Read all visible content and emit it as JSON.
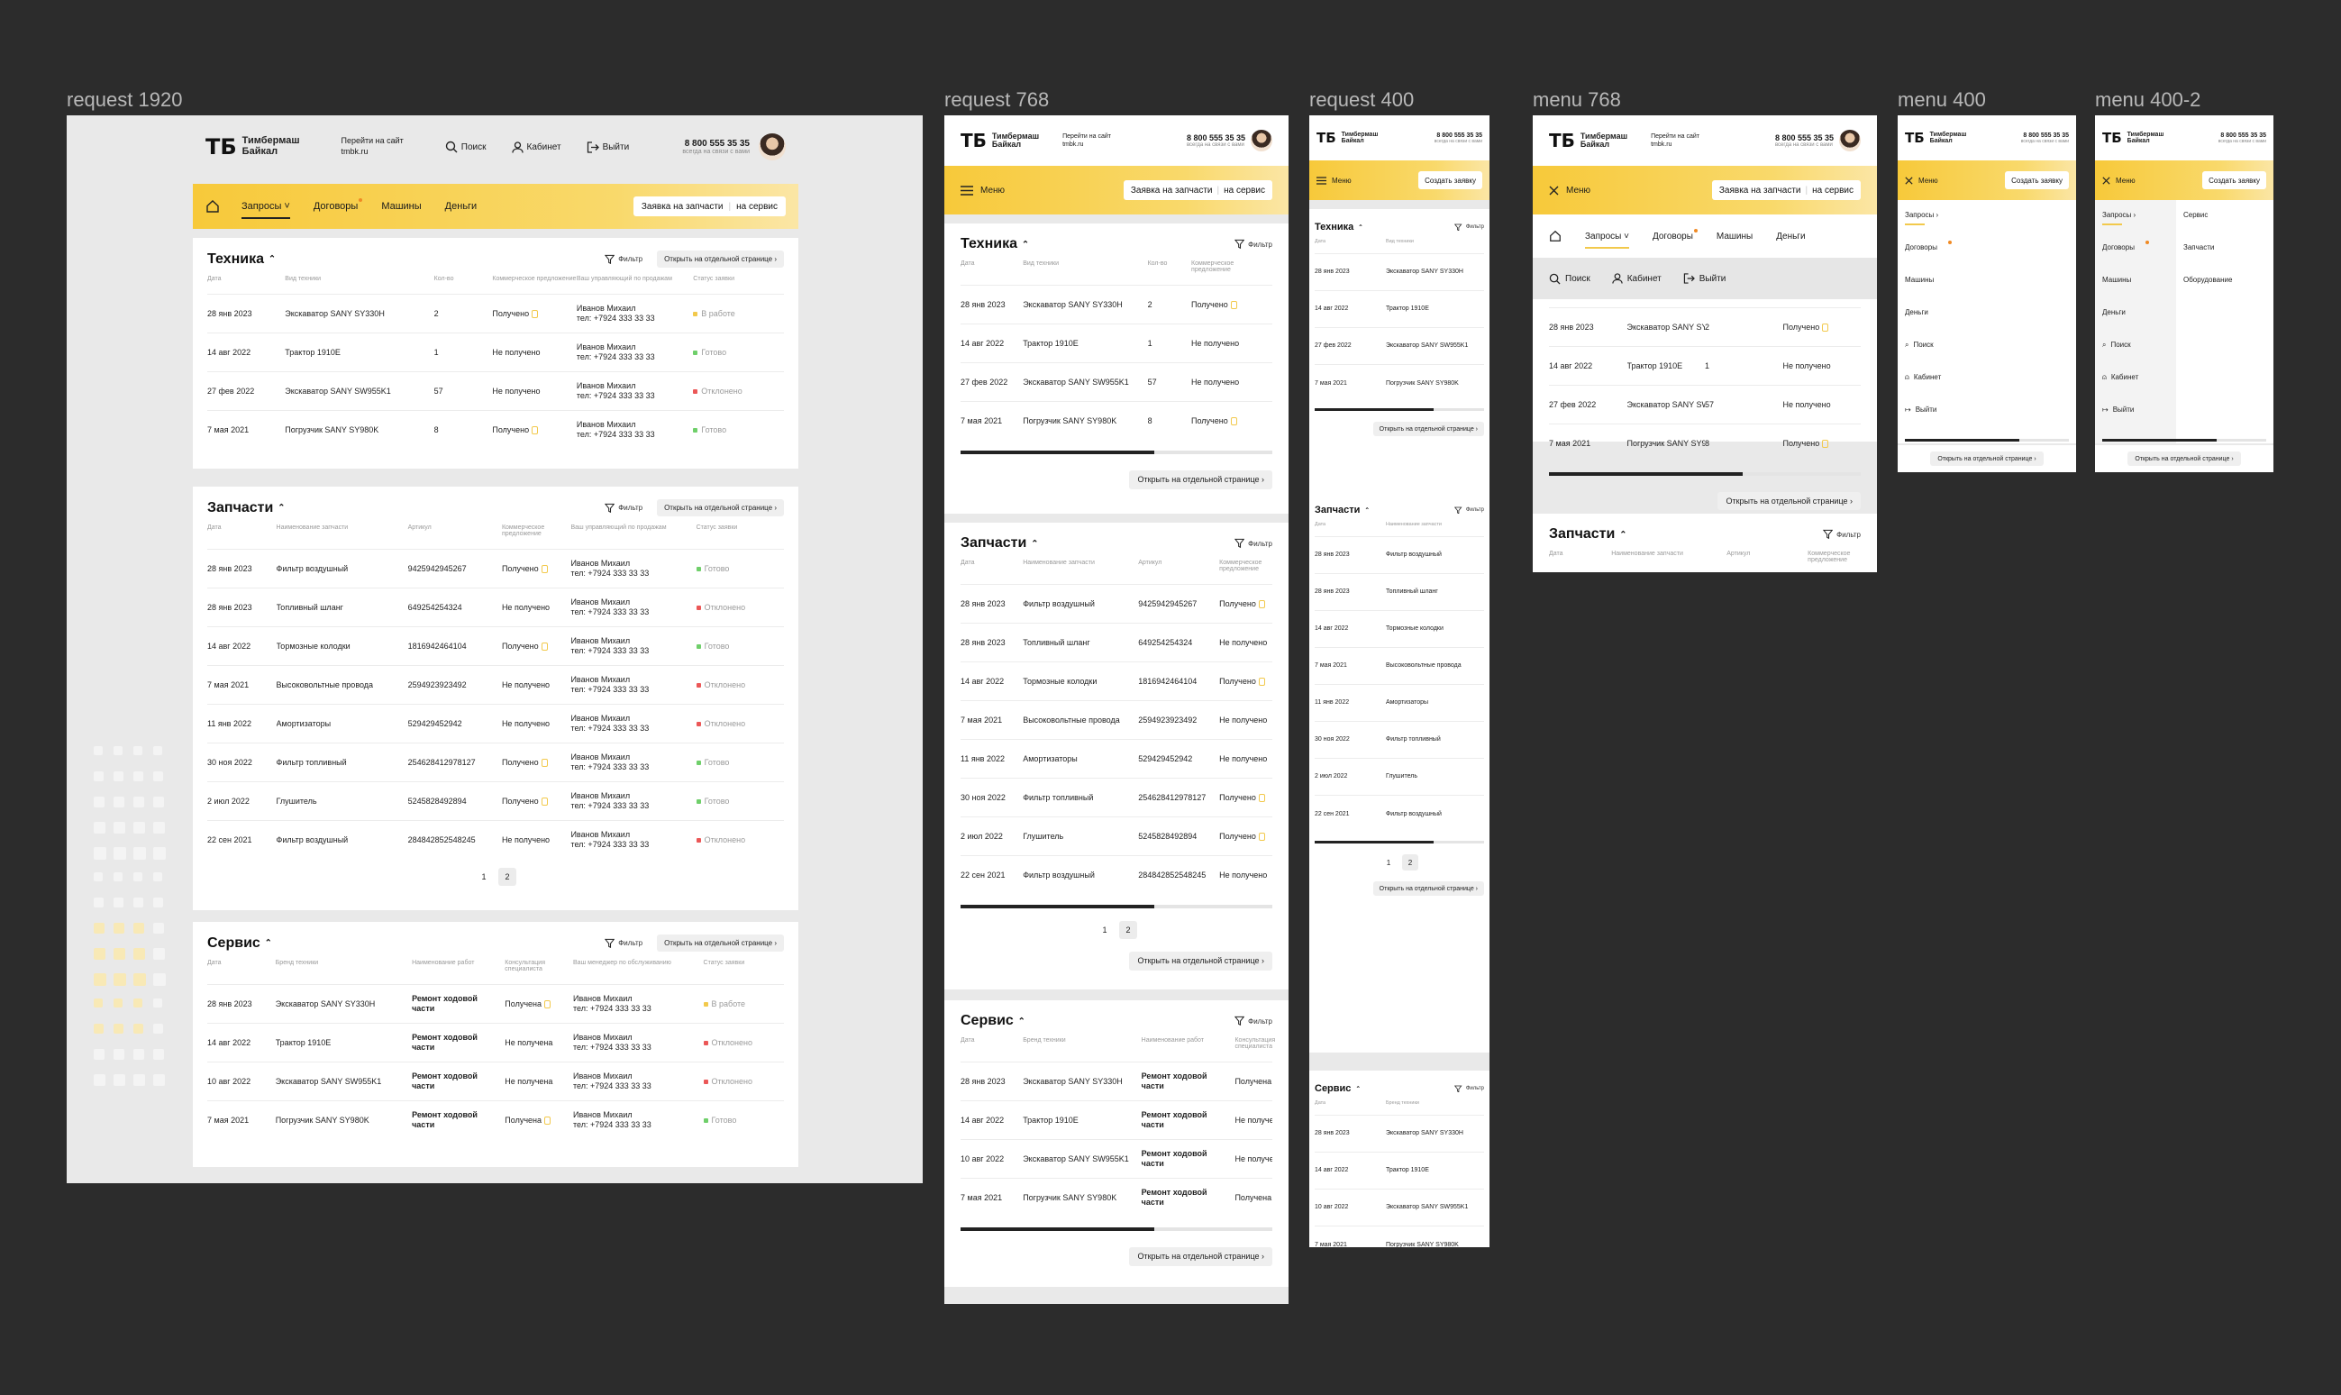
{
  "frames": {
    "f1920": "request 1920",
    "f768": "request 768",
    "f400": "request 400",
    "m768": "menu 768",
    "m400": "menu 400",
    "m400b": "menu 400-2"
  },
  "header": {
    "logo_mark": "ТБ",
    "logo_line1": "Тимбермаш",
    "logo_line2": "Байкал",
    "site_link_line1": "Перейти на сайт",
    "site_link_line2": "tmbk.ru",
    "search": "Поиск",
    "cabinet": "Кабинет",
    "logout": "Выйти",
    "phone": "8 800 555 35 35",
    "phone_note": "всегда на связи с вами"
  },
  "nav": {
    "home_icon": "home-icon",
    "items": [
      "Запросы",
      "Договоры",
      "Машины",
      "Деньги"
    ],
    "menu": "Меню",
    "request_btn_a": "Заявка на запчасти",
    "request_btn_b": "на сервис",
    "create_btn": "Создать заявку"
  },
  "menu_extra": [
    "Сервис",
    "Запчасти",
    "Оборудование"
  ],
  "common": {
    "filter": "Фильтр",
    "open_page": "Открыть на отдельной странице",
    "received": "Получено",
    "not_received": "Не получено",
    "manager_name": "Иванов Михаил",
    "manager_phone": "тел: +7924 333 33 33",
    "pages": [
      "1",
      "2"
    ]
  },
  "statuses": {
    "work": "В работе",
    "done": "Готово",
    "rejected": "Отклонено"
  },
  "colors": {
    "accent": "#f7c93a",
    "status_work": "#f2c94c",
    "status_done": "#6fcf6a",
    "status_rejected": "#eb5757"
  },
  "tech": {
    "title": "Техника",
    "cols": [
      "Дата",
      "Вид техники",
      "Кол-во",
      "Коммерческое предложение",
      "Ваш управляющий по продажам",
      "Статус заявки"
    ],
    "rows": [
      {
        "date": "28 янв 2023",
        "name": "Экскаватор SANY SY330H",
        "qty": "2",
        "offer": "Получено",
        "status": "В работе",
        "sc": "#f2c94c"
      },
      {
        "date": "14 авг 2022",
        "name": "Трактор 1910E",
        "qty": "1",
        "offer": "Не получено",
        "status": "Готово",
        "sc": "#6fcf6a"
      },
      {
        "date": "27 фев 2022",
        "name": "Экскаватор SANY SW955K1",
        "qty": "57",
        "offer": "Не получено",
        "status": "Отклонено",
        "sc": "#eb5757"
      },
      {
        "date": "7 мая 2021",
        "name": "Погрузчик SANY SY980K",
        "qty": "8",
        "offer": "Получено",
        "status": "Готово",
        "sc": "#6fcf6a"
      }
    ]
  },
  "parts": {
    "title": "Запчасти",
    "cols": [
      "Дата",
      "Наименование запчасти",
      "Артикул",
      "Коммерческое предложение",
      "Ваш управляющий по продажам",
      "Статус заявки"
    ],
    "rows": [
      {
        "date": "28 янв 2023",
        "name": "Фильтр воздушный",
        "art": "9425942945267",
        "offer": "Получено",
        "status": "Готово",
        "sc": "#6fcf6a"
      },
      {
        "date": "28 янв 2023",
        "name": "Топливный шланг",
        "art": "649254254324",
        "offer": "Не получено",
        "status": "Отклонено",
        "sc": "#eb5757"
      },
      {
        "date": "14 авг 2022",
        "name": "Тормозные колодки",
        "art": "1816942464104",
        "offer": "Получено",
        "status": "Готово",
        "sc": "#6fcf6a"
      },
      {
        "date": "7 мая 2021",
        "name": "Высоковольтные провода",
        "art": "2594923923492",
        "offer": "Не получено",
        "status": "Отклонено",
        "sc": "#eb5757"
      },
      {
        "date": "11 янв 2022",
        "name": "Амортизаторы",
        "art": "529429452942",
        "offer": "Не получено",
        "status": "Отклонено",
        "sc": "#eb5757"
      },
      {
        "date": "30 ноя 2022",
        "name": "Фильтр топливный",
        "art": "254628412978127",
        "offer": "Получено",
        "status": "Готово",
        "sc": "#6fcf6a"
      },
      {
        "date": "2 июл 2022",
        "name": "Глушитель",
        "art": "5245828492894",
        "offer": "Получено",
        "status": "Готово",
        "sc": "#6fcf6a"
      },
      {
        "date": "22 сен 2021",
        "name": "Фильтр воздушный",
        "art": "284842852548245",
        "offer": "Не получено",
        "status": "Отклонено",
        "sc": "#eb5757"
      }
    ]
  },
  "service": {
    "title": "Сервис",
    "cols": [
      "Дата",
      "Бренд техники",
      "Наименование работ",
      "Консультация специалиста",
      "Ваш менеджер по обслуживанию",
      "Статус заявки"
    ],
    "work": "Ремонт ходовой части",
    "rows": [
      {
        "date": "28 янв 2023",
        "name": "Экскаватор SANY SY330H",
        "offer": "Получена",
        "status": "В работе",
        "sc": "#f2c94c"
      },
      {
        "date": "14 авг 2022",
        "name": "Трактор 1910E",
        "offer": "Не получена",
        "status": "Отклонено",
        "sc": "#eb5757"
      },
      {
        "date": "10 авг 2022",
        "name": "Экскаватор SANY SW955K1",
        "offer": "Не получена",
        "status": "Отклонено",
        "sc": "#eb5757"
      },
      {
        "date": "7 мая 2021",
        "name": "Погрузчик SANY SY980K",
        "offer": "Получена",
        "status": "Готово",
        "sc": "#6fcf6a"
      }
    ]
  }
}
